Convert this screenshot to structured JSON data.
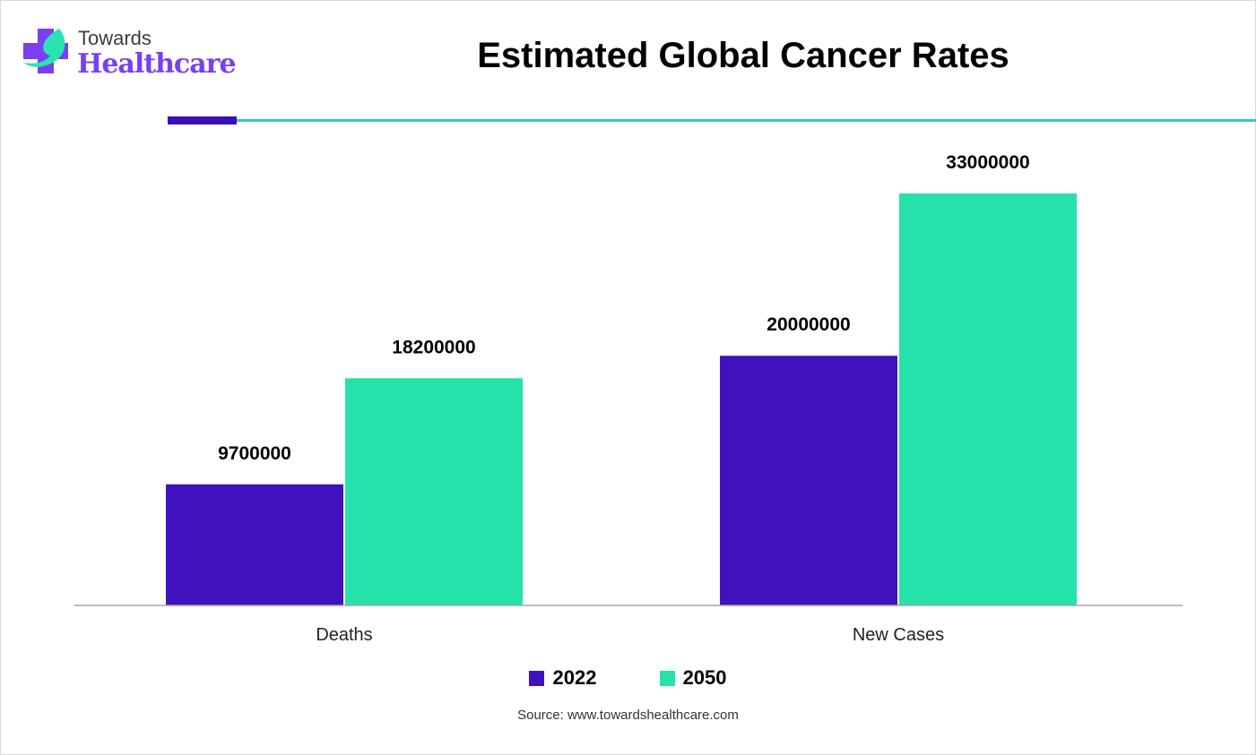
{
  "brand": {
    "line1": "Towards",
    "line2": "Healthcare",
    "icon": "medical-cross-leaf-icon",
    "colors": {
      "purple": "#7a3ff0",
      "teal": "#29e3b0"
    }
  },
  "chart_data": {
    "type": "bar",
    "title": "Estimated Global Cancer Rates",
    "categories": [
      "Deaths",
      "New Cases"
    ],
    "series": [
      {
        "name": "2022",
        "color": "#3f12bd",
        "values": [
          9700000,
          20000000
        ]
      },
      {
        "name": "2050",
        "color": "#26e2aa",
        "values": [
          18200000,
          33000000
        ]
      }
    ],
    "data_labels": [
      [
        "9700000",
        "20000000"
      ],
      [
        "18200000",
        "33000000"
      ]
    ],
    "xlabel": "",
    "ylabel": "",
    "ylim": [
      0,
      36000000
    ],
    "grid": false,
    "y_axis_visible": false,
    "legend_position": "bottom"
  },
  "source": "Source: www.towardshealthcare.com"
}
